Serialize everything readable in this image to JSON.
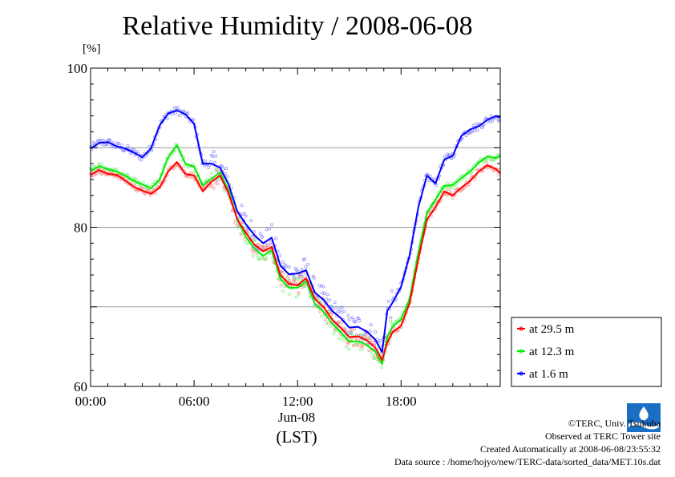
{
  "title": "Relative Humidity / 2008-06-08",
  "unit": "[%]",
  "date_label": "Jun-08",
  "time_zone_label": "(LST)",
  "credits": [
    "©TERC, Univ. Tsukuba",
    "Observed at TERC Tower site",
    "Created Automatically at 2008-06-08/23:55:32",
    "Data source : /home/hojyo/new/TERC-data/sorted_data/MET.10s.dat"
  ],
  "logo_text": "TERC",
  "chart_data": {
    "type": "line",
    "title": "Relative Humidity / 2008-06-08",
    "ylabel": "[%]",
    "xlabel": "Jun-08 (LST)",
    "xlim": [
      0,
      23.75
    ],
    "ylim": [
      60,
      100
    ],
    "x_ticks": [
      0,
      6,
      12,
      18
    ],
    "x_tick_labels": [
      "00:00",
      "06:00",
      "12:00",
      "18:00"
    ],
    "y_ticks": [
      60,
      80,
      100
    ],
    "y_tick_labels": [
      "60",
      "80",
      "100"
    ],
    "grid": "horizontal",
    "legend_placement": "right",
    "x": [
      0,
      0.5,
      1,
      1.5,
      2,
      2.5,
      3,
      3.5,
      4,
      4.5,
      5,
      5.5,
      6,
      6.5,
      7,
      7.5,
      8,
      8.5,
      9,
      9.5,
      10,
      10.5,
      11,
      11.5,
      12,
      12.5,
      13,
      13.5,
      14,
      14.5,
      15,
      15.5,
      16,
      16.5,
      16.9,
      17.2,
      17.5,
      18,
      18.5,
      19,
      19.5,
      20,
      20.5,
      21,
      21.5,
      22,
      22.5,
      23,
      23.5,
      23.75
    ],
    "series": [
      {
        "name": "at 29.5 m",
        "color": "#ff0000",
        "values": [
          86.6,
          87.2,
          86.7,
          86.6,
          85.9,
          85.1,
          84.6,
          84.2,
          85.0,
          87.0,
          88.2,
          86.7,
          86.5,
          84.5,
          85.7,
          86.5,
          84.3,
          81.0,
          79.3,
          77.8,
          77.0,
          77.5,
          74.0,
          72.9,
          72.7,
          73.6,
          71.0,
          70.0,
          68.4,
          67.4,
          66.2,
          66.3,
          65.8,
          64.9,
          63.3,
          65.5,
          66.8,
          67.6,
          70.5,
          76.0,
          81.0,
          82.5,
          84.5,
          84.0,
          85.0,
          85.8,
          87.0,
          87.8,
          87.3,
          86.8
        ]
      },
      {
        "name": "at 12.3 m",
        "color": "#00ee00",
        "values": [
          87.1,
          87.7,
          87.3,
          87.0,
          86.5,
          85.8,
          85.4,
          84.9,
          86.0,
          88.8,
          90.3,
          88.0,
          87.6,
          85.3,
          86.1,
          86.9,
          84.6,
          81.0,
          78.8,
          77.3,
          76.4,
          77.1,
          73.5,
          72.4,
          72.4,
          73.2,
          70.4,
          69.4,
          67.9,
          66.8,
          65.6,
          65.7,
          65.2,
          64.4,
          62.8,
          66.2,
          67.5,
          68.4,
          71.0,
          76.8,
          81.8,
          83.5,
          85.2,
          85.3,
          86.2,
          87.0,
          88.1,
          88.9,
          88.7,
          89.0
        ]
      },
      {
        "name": "at 1.6 m",
        "color": "#0000ff",
        "values": [
          89.9,
          90.6,
          90.7,
          90.2,
          89.9,
          89.4,
          88.8,
          89.9,
          92.8,
          94.3,
          94.7,
          94.2,
          93.0,
          88.0,
          88.0,
          87.5,
          85.4,
          82.0,
          80.4,
          79.0,
          78.0,
          78.7,
          75.2,
          74.1,
          74.2,
          74.6,
          71.8,
          70.9,
          69.5,
          68.6,
          67.4,
          67.5,
          66.9,
          65.9,
          64.3,
          69.5,
          70.5,
          72.5,
          76.5,
          82.5,
          86.5,
          85.5,
          88.5,
          89.0,
          91.5,
          92.3,
          92.7,
          93.5,
          94.0,
          93.8
        ]
      }
    ]
  }
}
